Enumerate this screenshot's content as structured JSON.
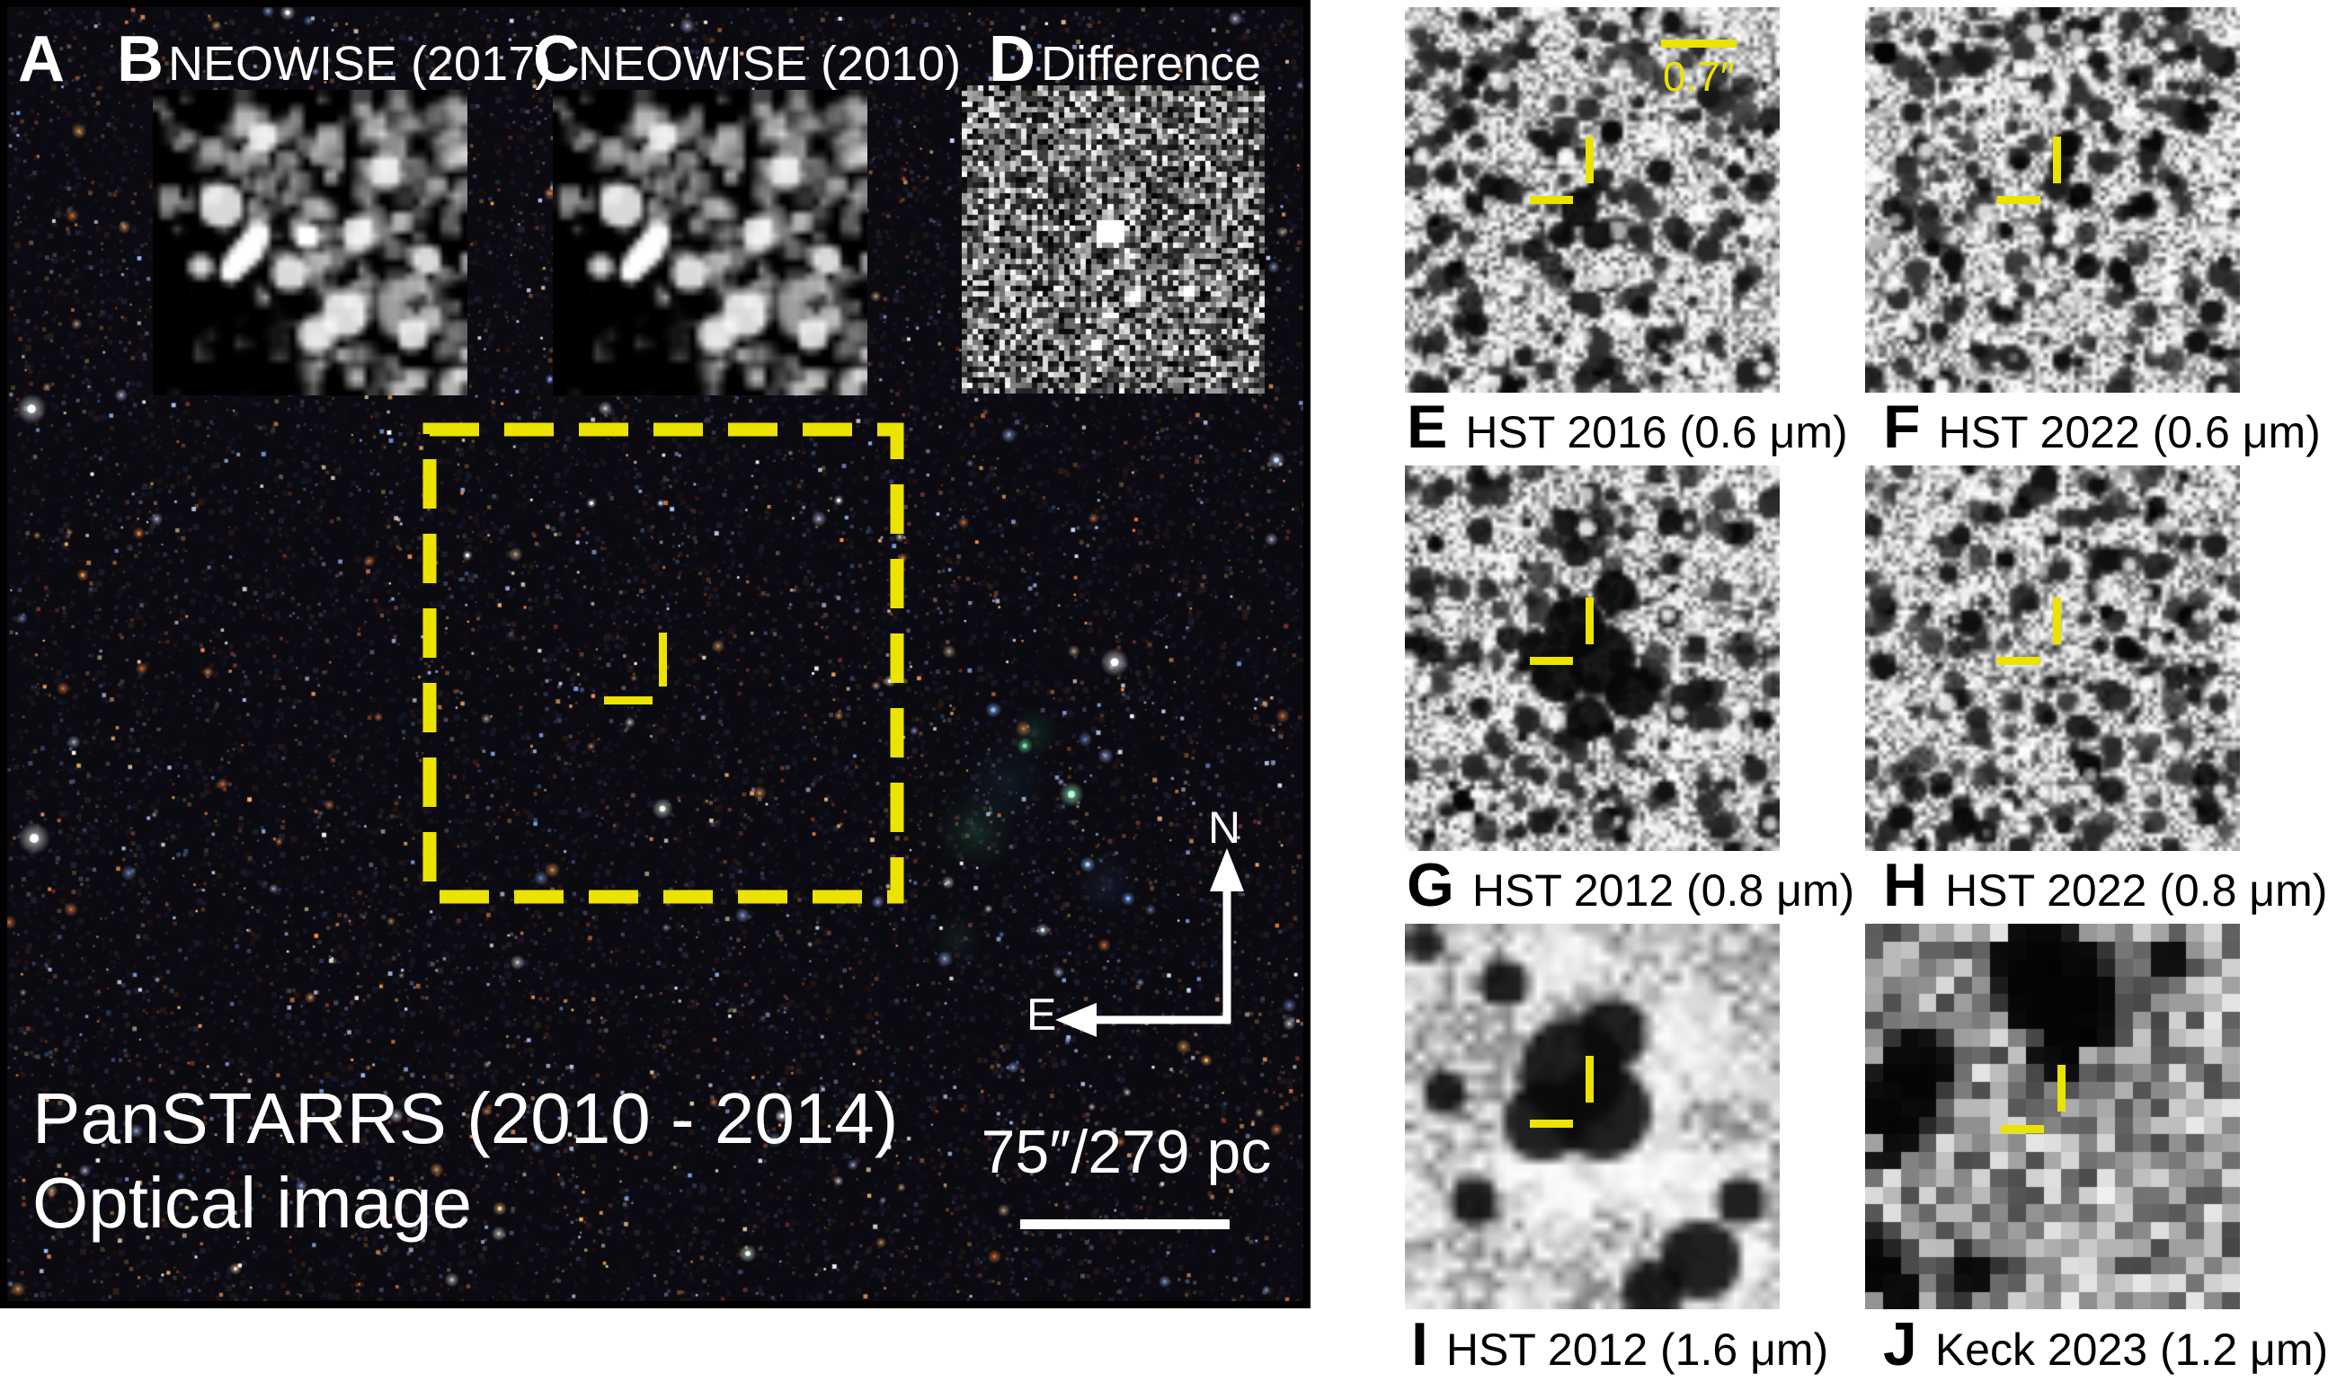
{
  "figure": {
    "panelA": {
      "letter": "A",
      "caption_line1": "PanSTARRS (2010 - 2014)",
      "caption_line2": "Optical image",
      "scale_bar": "75″/279 pc",
      "compass": {
        "north": "N",
        "east": "E"
      }
    },
    "insets": {
      "B": {
        "letter": "B",
        "label": "NEOWISE (2017)"
      },
      "C": {
        "letter": "C",
        "label": "NEOWISE (2010)"
      },
      "D": {
        "letter": "D",
        "label": "Difference"
      }
    },
    "cutouts": {
      "E": {
        "letter": "E",
        "caption": "HST 2016 (0.6 μm)",
        "scale_bar": "0.7″"
      },
      "F": {
        "letter": "F",
        "caption": "HST 2022 (0.6 μm)"
      },
      "G": {
        "letter": "G",
        "caption": "HST 2012 (0.8 μm)"
      },
      "H": {
        "letter": "H",
        "caption": "HST 2022 (0.8 μm)"
      },
      "I": {
        "letter": "I",
        "caption": "HST 2012 (1.6 μm)"
      },
      "J": {
        "letter": "J",
        "caption": "Keck 2023 (1.2 μm)"
      }
    },
    "colors": {
      "marker": "#ece300",
      "label_text": "#ffffff",
      "caption_text": "#000000"
    }
  }
}
